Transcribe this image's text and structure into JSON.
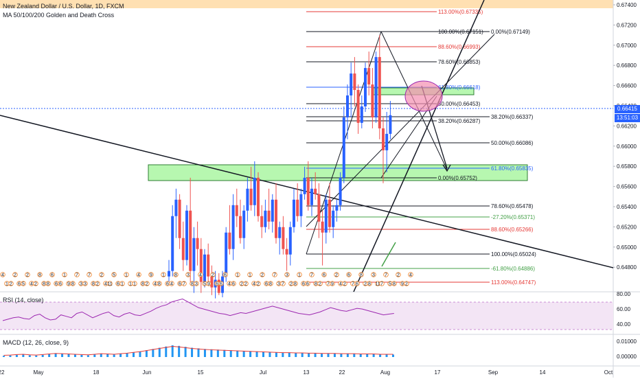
{
  "header": {
    "title": "New Zealand Dollar / U.S. Dollar, 1D, FXCM",
    "indicator": "MA 50/100/200 Golden and Death Cross",
    "rsi": "RSI (14, close)",
    "macd": "MACD (12, 26, close, 9)"
  },
  "price_axis": [
    "0.67400",
    "0.67200",
    "0.67000",
    "0.66800",
    "0.66600",
    "0.66400",
    "0.66200",
    "0.66000",
    "0.65800",
    "0.65600",
    "0.65400",
    "0.65200",
    "0.65000",
    "0.64800"
  ],
  "current_price": {
    "label": "0.66415",
    "color": "#2962ff"
  },
  "countdown": {
    "label": "13:51:03",
    "color": "#2962ff"
  },
  "rsi_axis": [
    "80.00",
    "60.00",
    "40.00"
  ],
  "macd_axis": [
    "0.01000",
    "0.00000"
  ],
  "date_axis": [
    "22",
    "May",
    "18",
    "Jun",
    "15",
    "Jul",
    "13",
    "22",
    "Aug",
    "17",
    "Sep",
    "14",
    "Oct"
  ],
  "fib_levels": [
    {
      "text": "113.00%(0.67335)",
      "color": "#e53935"
    },
    {
      "text": "100.00%(0.67151)",
      "color": "#131722"
    },
    {
      "text": "88.60%(0.66993)",
      "color": "#e53935"
    },
    {
      "text": "78.60%(0.66853)",
      "color": "#131722"
    },
    {
      "text": "61.80%(0.66618)",
      "color": "#2962ff"
    },
    {
      "text": "50.00%(0.66453)",
      "color": "#131722"
    },
    {
      "text": "38.20%(0.66287)",
      "color": "#131722"
    },
    {
      "text": "0.00%(0.65752)",
      "color": "#131722"
    }
  ],
  "fib_levels_2": [
    {
      "text": "0.00%(0.67149)",
      "color": "#131722"
    },
    {
      "text": "38.20%(0.66337)",
      "color": "#131722"
    },
    {
      "text": "50.00%(0.66086)",
      "color": "#131722"
    },
    {
      "text": "61.80%(0.65835)",
      "color": "#2962ff"
    },
    {
      "text": "78.60%(0.65478)",
      "color": "#131722"
    },
    {
      "text": "-27.20%(0.65371)",
      "color": "#43a047"
    },
    {
      "text": "88.60%(0.65266)",
      "color": "#e53935"
    },
    {
      "text": "100.00%(0.65024)",
      "color": "#131722"
    },
    {
      "text": "-61.80%(0.64886)",
      "color": "#43a047"
    },
    {
      "text": "113.00%(0.64747)",
      "color": "#e53935"
    }
  ],
  "event_badges": [
    "4",
    "1",
    "2",
    "2",
    "6",
    "5",
    "2",
    "4",
    "2",
    "8",
    "8",
    "8",
    "6",
    "6",
    "6",
    "1",
    "9",
    "8",
    "7",
    "3",
    "3",
    "7",
    "8",
    "2",
    "2",
    "4",
    "11",
    "5",
    "6",
    "1",
    "1",
    "1",
    "1",
    "4",
    "8",
    "2",
    "9",
    "4",
    "8",
    "1",
    "6",
    "4",
    "8",
    "6",
    "7",
    "3",
    "8",
    "3",
    "4",
    "5",
    "9",
    "2",
    "6",
    "6",
    "6",
    "4",
    "6",
    "1",
    "2",
    "2",
    "1",
    "4",
    "2",
    "2",
    "6",
    "8",
    "7",
    "3",
    "7",
    "3",
    "2",
    "8",
    "1",
    "6",
    "6",
    "7",
    "8",
    "2",
    "6",
    "7",
    "9",
    "2",
    "4",
    "2",
    "6",
    "7",
    "6",
    "8",
    "2",
    "8",
    "3",
    "11",
    "7",
    "7",
    "5",
    "8",
    "2",
    "9",
    "2",
    "4",
    "6"
  ],
  "colors": {
    "up": "#2962ff",
    "down": "#ef5350",
    "green_zone": "#b7f7b0",
    "rsi_band": "#f3e5f5",
    "rsi_line": "#9c27b0",
    "macd_hist": "#2196f3",
    "macd_signal": "#e53935",
    "top_band": "#ffe0b2"
  },
  "chart_data": {
    "type": "candlestick",
    "symbol": "NZDUSD",
    "timeframe": "1D",
    "ylim": [
      0.6476,
      0.6742
    ],
    "ohlc": [
      [
        0.6495,
        0.651,
        0.6488,
        0.65
      ],
      [
        0.65,
        0.656,
        0.6495,
        0.655
      ],
      [
        0.655,
        0.6575,
        0.653,
        0.6565
      ],
      [
        0.6565,
        0.657,
        0.652,
        0.653
      ],
      [
        0.653,
        0.6545,
        0.65,
        0.651
      ],
      [
        0.651,
        0.656,
        0.6505,
        0.6555
      ],
      [
        0.6555,
        0.6585,
        0.649,
        0.65
      ],
      [
        0.65,
        0.654,
        0.648,
        0.653
      ],
      [
        0.653,
        0.6545,
        0.6505,
        0.652
      ],
      [
        0.652,
        0.653,
        0.648,
        0.649
      ],
      [
        0.649,
        0.652,
        0.6485,
        0.6515
      ],
      [
        0.6515,
        0.6525,
        0.649,
        0.6495
      ],
      [
        0.6495,
        0.6505,
        0.6478,
        0.6485
      ],
      [
        0.6485,
        0.65,
        0.6475,
        0.6492
      ],
      [
        0.6492,
        0.6498,
        0.6478,
        0.648
      ],
      [
        0.648,
        0.65,
        0.6476,
        0.6495
      ],
      [
        0.6495,
        0.654,
        0.649,
        0.6535
      ],
      [
        0.6535,
        0.656,
        0.6515,
        0.652
      ],
      [
        0.652,
        0.657,
        0.651,
        0.656
      ],
      [
        0.656,
        0.6575,
        0.654,
        0.655
      ],
      [
        0.655,
        0.6565,
        0.6525,
        0.653
      ],
      [
        0.653,
        0.656,
        0.652,
        0.6555
      ],
      [
        0.6555,
        0.6585,
        0.6545,
        0.6575
      ],
      [
        0.6575,
        0.6595,
        0.6555,
        0.656
      ],
      [
        0.656,
        0.66,
        0.655,
        0.6585
      ],
      [
        0.6585,
        0.659,
        0.6545,
        0.655
      ],
      [
        0.655,
        0.656,
        0.653,
        0.654
      ],
      [
        0.654,
        0.6565,
        0.6535,
        0.6555
      ],
      [
        0.6555,
        0.6575,
        0.6538,
        0.6545
      ],
      [
        0.6545,
        0.657,
        0.6535,
        0.6565
      ],
      [
        0.6565,
        0.658,
        0.6525,
        0.653
      ],
      [
        0.653,
        0.6545,
        0.6515,
        0.654
      ],
      [
        0.654,
        0.655,
        0.6515,
        0.652
      ],
      [
        0.652,
        0.653,
        0.65,
        0.6515
      ],
      [
        0.6515,
        0.6545,
        0.6505,
        0.654
      ],
      [
        0.654,
        0.6575,
        0.6535,
        0.6565
      ],
      [
        0.6565,
        0.658,
        0.6545,
        0.655
      ],
      [
        0.655,
        0.6575,
        0.654,
        0.657
      ],
      [
        0.657,
        0.6595,
        0.6565,
        0.6585
      ],
      [
        0.6585,
        0.66,
        0.6555,
        0.656
      ],
      [
        0.656,
        0.6585,
        0.655,
        0.6575
      ],
      [
        0.6575,
        0.659,
        0.6565,
        0.657
      ],
      [
        0.657,
        0.658,
        0.653,
        0.6545
      ],
      [
        0.6545,
        0.6555,
        0.6505,
        0.6535
      ],
      [
        0.6535,
        0.657,
        0.6525,
        0.6565
      ],
      [
        0.6565,
        0.658,
        0.6535,
        0.654
      ],
      [
        0.654,
        0.656,
        0.653,
        0.6555
      ],
      [
        0.6555,
        0.6565,
        0.6545,
        0.656
      ],
      [
        0.656,
        0.659,
        0.6555,
        0.6585
      ],
      [
        0.6585,
        0.665,
        0.658,
        0.664
      ],
      [
        0.664,
        0.667,
        0.662,
        0.666
      ],
      [
        0.666,
        0.669,
        0.664,
        0.668
      ],
      [
        0.668,
        0.6695,
        0.665,
        0.6665
      ],
      [
        0.6665,
        0.667,
        0.6625,
        0.6635
      ],
      [
        0.6635,
        0.666,
        0.663,
        0.665
      ],
      [
        0.665,
        0.669,
        0.6645,
        0.6685
      ],
      [
        0.6685,
        0.67,
        0.666,
        0.667
      ],
      [
        0.667,
        0.6685,
        0.663,
        0.664
      ],
      [
        0.664,
        0.67,
        0.6635,
        0.6695
      ],
      [
        0.6695,
        0.6715,
        0.662,
        0.663
      ],
      [
        0.663,
        0.664,
        0.658,
        0.661
      ],
      [
        0.661,
        0.6645,
        0.659,
        0.6625
      ],
      [
        0.6625,
        0.6655,
        0.662,
        0.6642
      ]
    ],
    "rsi": [
      48,
      50,
      52,
      53,
      51,
      50,
      55,
      57,
      52,
      49,
      50,
      56,
      54,
      52,
      58,
      60,
      56,
      52,
      55,
      58,
      60,
      55,
      53,
      57,
      59,
      56,
      55,
      58,
      61,
      65,
      68,
      70,
      74,
      76,
      78,
      74,
      70,
      66,
      64,
      62,
      60,
      58,
      57,
      55,
      57,
      59,
      58,
      60,
      62,
      64,
      66,
      68,
      66,
      64,
      62,
      60,
      58,
      57,
      56,
      58,
      60,
      63,
      66,
      64,
      62,
      61,
      63,
      65,
      64,
      62,
      60,
      58,
      56,
      57,
      58
    ],
    "macd_hist": [
      0.0004,
      0.0005,
      0.0007,
      0.0008,
      0.0006,
      0.0005,
      0.0007,
      0.0009,
      0.0011,
      0.001,
      0.0009,
      0.0008,
      0.0007,
      0.0006,
      0.0008,
      0.001,
      0.0009,
      0.0008,
      0.001,
      0.0012,
      0.0015,
      0.0018,
      0.0022,
      0.0026,
      0.003,
      0.0034,
      0.0038,
      0.0036,
      0.0033,
      0.003,
      0.0028,
      0.0026,
      0.0025,
      0.0024,
      0.0023,
      0.0022,
      0.0021,
      0.002,
      0.0019,
      0.0018,
      0.0017,
      0.0016,
      0.0015,
      0.0014,
      0.0014,
      0.0013,
      0.0013,
      0.0012,
      0.0012,
      0.0011,
      0.0011,
      0.0011,
      0.001,
      0.001,
      0.001,
      0.0009,
      0.0009,
      0.0009,
      0.0008,
      0.0008,
      0.0008
    ]
  }
}
